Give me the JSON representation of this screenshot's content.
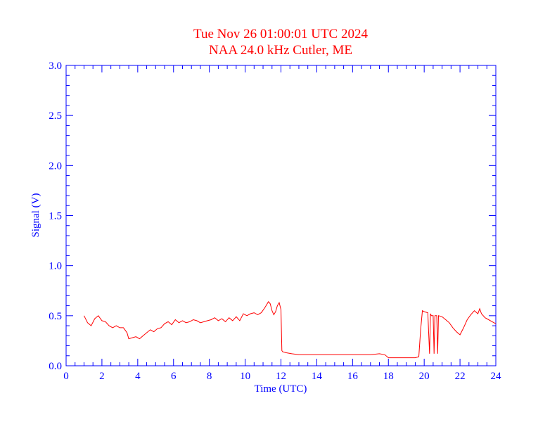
{
  "colors": {
    "title": "#ff0000",
    "axes": "#0000ff",
    "series": "#ff0000",
    "background": "#ffffff"
  },
  "chart_data": {
    "type": "line",
    "title": "Tue Nov 26 01:00:01 UTC 2024",
    "subtitle": "NAA 24.0 kHz Cutler, ME",
    "xlabel": "Time (UTC)",
    "ylabel": "Signal (V)",
    "xlim": [
      0,
      24
    ],
    "ylim": [
      0,
      3.0
    ],
    "x_ticks": [
      0,
      2,
      4,
      6,
      8,
      10,
      12,
      14,
      16,
      18,
      20,
      22,
      24
    ],
    "x_tick_labels": [
      "0",
      "2",
      "4",
      "6",
      "8",
      "10",
      "12",
      "14",
      "16",
      "18",
      "20",
      "22",
      "24"
    ],
    "y_ticks": [
      0,
      0.5,
      1.0,
      1.5,
      2.0,
      2.5,
      3.0
    ],
    "y_tick_labels": [
      "0.0",
      "0.5",
      "1.0",
      "1.5",
      "2.0",
      "2.5",
      "3.0"
    ],
    "x_minor_step": 0.5,
    "y_minor_step": 0.1,
    "grid": false,
    "legend": "none",
    "series": [
      {
        "x": [
          1.0,
          1.2,
          1.4,
          1.6,
          1.8,
          2.0,
          2.2,
          2.4,
          2.6,
          2.8,
          3.0,
          3.2,
          3.4,
          3.5,
          3.7,
          3.9,
          4.1,
          4.3,
          4.5,
          4.7,
          4.9,
          5.1,
          5.3,
          5.5,
          5.7,
          5.9,
          6.1,
          6.3,
          6.5,
          6.7,
          6.9,
          7.1,
          7.3,
          7.5,
          7.7,
          7.9,
          8.1,
          8.3,
          8.5,
          8.7,
          8.9,
          9.1,
          9.3,
          9.5,
          9.7,
          9.9,
          10.1,
          10.3,
          10.5,
          10.7,
          10.9,
          11.1,
          11.3,
          11.4,
          11.5,
          11.6,
          11.7,
          11.8,
          11.9,
          12.0,
          12.05,
          12.1,
          12.3,
          12.6,
          13.0,
          13.5,
          14.0,
          14.5,
          15.0,
          15.5,
          16.0,
          16.5,
          17.0,
          17.5,
          17.8,
          18.0,
          18.5,
          19.0,
          19.5,
          19.7,
          19.8,
          19.9,
          20.0,
          20.2,
          20.3,
          20.35,
          20.4,
          20.5,
          20.55,
          20.6,
          20.7,
          20.75,
          20.8,
          21.0,
          21.2,
          21.4,
          21.6,
          21.8,
          22.0,
          22.2,
          22.4,
          22.6,
          22.8,
          23.0,
          23.1,
          23.2,
          23.4,
          23.6,
          23.8,
          24.0
        ],
        "y": [
          0.5,
          0.43,
          0.4,
          0.47,
          0.5,
          0.45,
          0.44,
          0.4,
          0.38,
          0.4,
          0.38,
          0.38,
          0.33,
          0.27,
          0.28,
          0.29,
          0.27,
          0.3,
          0.33,
          0.36,
          0.34,
          0.37,
          0.38,
          0.42,
          0.44,
          0.41,
          0.46,
          0.43,
          0.45,
          0.43,
          0.44,
          0.46,
          0.45,
          0.43,
          0.44,
          0.45,
          0.46,
          0.48,
          0.45,
          0.47,
          0.44,
          0.48,
          0.45,
          0.49,
          0.45,
          0.52,
          0.5,
          0.52,
          0.53,
          0.51,
          0.53,
          0.58,
          0.64,
          0.62,
          0.55,
          0.51,
          0.54,
          0.6,
          0.63,
          0.56,
          0.15,
          0.14,
          0.13,
          0.12,
          0.11,
          0.11,
          0.11,
          0.11,
          0.11,
          0.11,
          0.11,
          0.11,
          0.11,
          0.12,
          0.11,
          0.08,
          0.08,
          0.08,
          0.08,
          0.09,
          0.36,
          0.55,
          0.54,
          0.53,
          0.12,
          0.52,
          0.5,
          0.5,
          0.12,
          0.5,
          0.5,
          0.12,
          0.5,
          0.49,
          0.46,
          0.43,
          0.38,
          0.34,
          0.31,
          0.38,
          0.46,
          0.51,
          0.55,
          0.52,
          0.57,
          0.52,
          0.48,
          0.46,
          0.44,
          0.42
        ]
      }
    ]
  }
}
